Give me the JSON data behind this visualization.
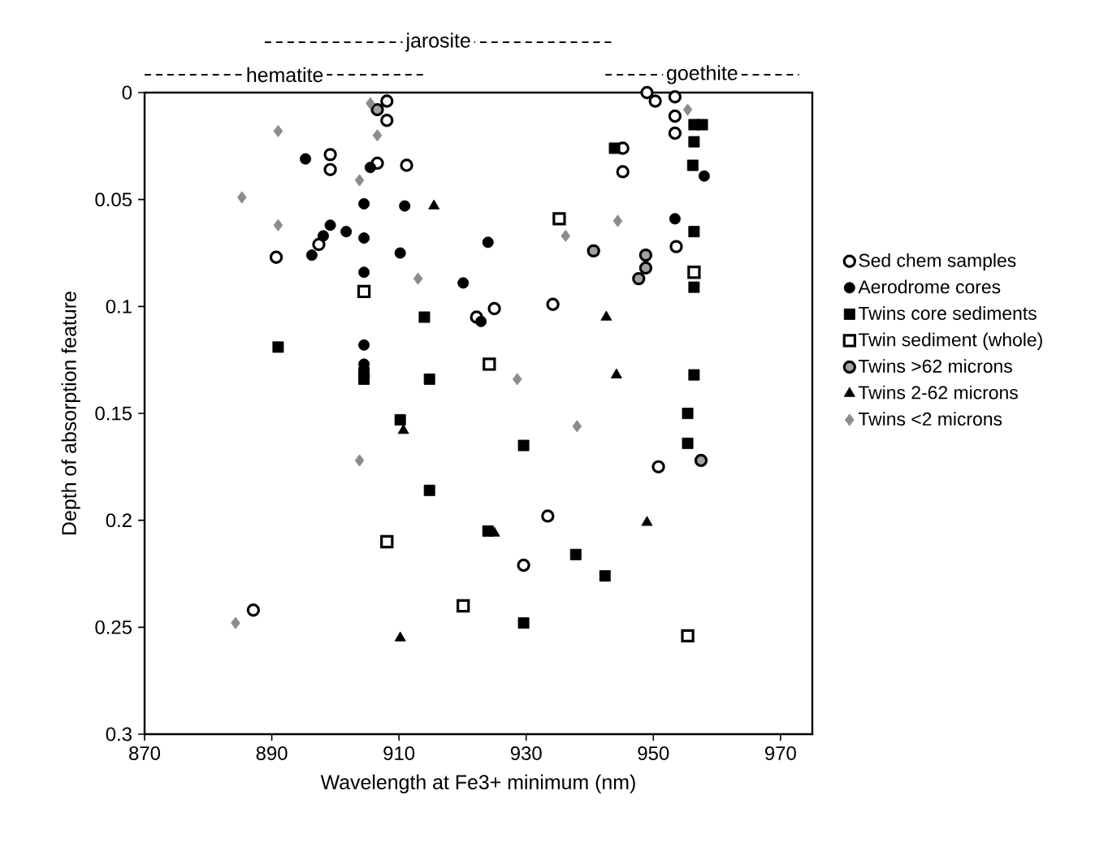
{
  "chart_data": {
    "type": "scatter",
    "xlabel": "Wavelength at Fe3+ minimum (nm)",
    "ylabel": "Depth of absorption feature",
    "xlim": [
      870,
      975
    ],
    "ylim": [
      0.3,
      0
    ],
    "xticks": [
      870,
      890,
      910,
      930,
      950,
      970
    ],
    "yticks": [
      0,
      0.05,
      0.1,
      0.15,
      0.2,
      0.25,
      0.3
    ],
    "legend": "right",
    "annotations": [
      "hematite",
      "jarosite",
      "goethite"
    ],
    "series": [
      {
        "name": "Sed chem samples",
        "marker": "circle",
        "color": "#000000",
        "x": [
          908.1,
          908.1,
          899.2,
          899.2,
          906.6,
          911.2,
          897.4,
          890.7,
          922.2,
          925.0,
          934.2,
          949.0,
          950.3,
          953.4,
          953.4,
          953.4,
          945.2,
          945.2,
          953.6,
          887.1,
          950.8,
          933.4,
          929.6
        ],
        "values": [
          0.004,
          0.013,
          0.029,
          0.036,
          0.033,
          0.034,
          0.071,
          0.077,
          0.105,
          0.101,
          0.099,
          0.0,
          0.004,
          0.002,
          0.011,
          0.019,
          0.026,
          0.037,
          0.072,
          0.242,
          0.175,
          0.198,
          0.221
        ]
      },
      {
        "name": "Aerodrome cores",
        "marker": "circle",
        "color": "#000000",
        "x": [
          895.3,
          905.5,
          904.5,
          910.9,
          899.2,
          898.1,
          901.7,
          904.5,
          896.3,
          910.2,
          904.5,
          920.1,
          922.9,
          924.0,
          904.5,
          904.5,
          953.4,
          958.0
        ],
        "values": [
          0.031,
          0.035,
          0.052,
          0.053,
          0.062,
          0.067,
          0.065,
          0.068,
          0.076,
          0.075,
          0.084,
          0.089,
          0.107,
          0.07,
          0.118,
          0.127,
          0.059,
          0.039
        ]
      },
      {
        "name": "Twins core sediments",
        "marker": "square",
        "color": "#000000",
        "x": [
          891.0,
          914.0,
          904.5,
          904.5,
          914.8,
          910.2,
          914.8,
          943.9,
          956.4,
          957.7,
          956.4,
          956.2,
          956.4,
          956.4,
          956.4,
          955.4,
          929.6,
          955.4,
          924.0,
          937.8,
          942.4,
          929.6
        ],
        "values": [
          0.119,
          0.105,
          0.131,
          0.134,
          0.134,
          0.153,
          0.186,
          0.026,
          0.015,
          0.015,
          0.023,
          0.034,
          0.065,
          0.091,
          0.132,
          0.15,
          0.165,
          0.164,
          0.205,
          0.216,
          0.226,
          0.248
        ]
      },
      {
        "name": "Twin sediment (whole)",
        "marker": "square",
        "color": "#000000",
        "x": [
          904.5,
          935.2,
          956.4,
          924.2,
          908.1,
          920.1,
          955.4
        ],
        "values": [
          0.093,
          0.059,
          0.084,
          0.127,
          0.21,
          0.24,
          0.254
        ]
      },
      {
        "name": "Twins >62 microns",
        "marker": "circle",
        "color": "#000000",
        "x": [
          906.6,
          940.6,
          948.8,
          948.8,
          947.7,
          957.5
        ],
        "values": [
          0.008,
          0.074,
          0.076,
          0.082,
          0.087,
          0.172
        ]
      },
      {
        "name": "Twins 2-62 microns",
        "marker": "triangle",
        "color": "#000000",
        "x": [
          915.5,
          910.7,
          942.6,
          944.2,
          925.0,
          949.0,
          910.2
        ],
        "values": [
          0.053,
          0.158,
          0.105,
          0.132,
          0.206,
          0.201,
          0.255
        ]
      },
      {
        "name": "Twins <2 microns",
        "marker": "diamond",
        "color": "#8c8c8c",
        "x": [
          905.5,
          891.0,
          906.6,
          903.8,
          885.3,
          891.0,
          913.0,
          944.4,
          936.2,
          928.6,
          938.0,
          903.8,
          884.3,
          955.4
        ],
        "values": [
          0.005,
          0.018,
          0.02,
          0.041,
          0.049,
          0.062,
          0.087,
          0.06,
          0.067,
          0.134,
          0.156,
          0.172,
          0.248,
          0.008
        ]
      }
    ]
  }
}
